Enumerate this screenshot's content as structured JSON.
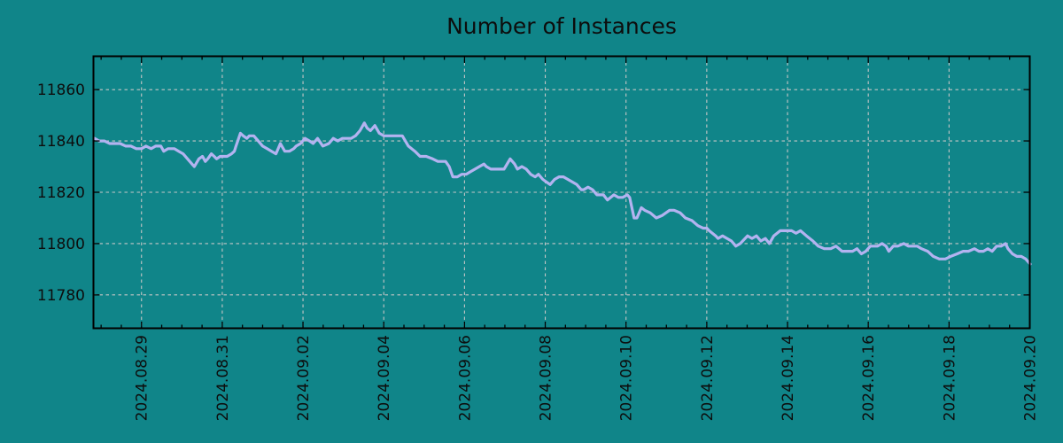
{
  "figure": {
    "background_color": "#108589",
    "text_color": "#0d0d0d",
    "axis_color": "#000000"
  },
  "chart_data": {
    "type": "line",
    "title": "Number of Instances",
    "xlabel": "",
    "ylabel": "",
    "grid": true,
    "legend": false,
    "line_color": "#b3b3f0",
    "grid_color": "#c6c6c6",
    "x_axis": {
      "unit": "date",
      "tick_labels": [
        "2024.08.29",
        "2024.08.31",
        "2024.09.02",
        "2024.09.04",
        "2024.09.06",
        "2024.09.08",
        "2024.09.10",
        "2024.09.12",
        "2024.09.14",
        "2024.09.16",
        "2024.09.18",
        "2024.09.20"
      ],
      "tick_positions_days": [
        1,
        3,
        5,
        7,
        9,
        11,
        13,
        15,
        17,
        19,
        21,
        23
      ],
      "minor_tick_step_days": 0.5,
      "xlim_days": [
        -0.19,
        23.0
      ],
      "days_epoch": "2024.08.28"
    },
    "y_axis": {
      "ticks": [
        11780,
        11800,
        11820,
        11840,
        11860
      ],
      "ylim": [
        11767,
        11873
      ]
    },
    "series": [
      {
        "name": "Number of Instances",
        "points_days_value": [
          [
            -0.16,
            11841
          ],
          [
            -0.05,
            11840
          ],
          [
            0.08,
            11840
          ],
          [
            0.21,
            11839
          ],
          [
            0.34,
            11839
          ],
          [
            0.47,
            11839
          ],
          [
            0.61,
            11838
          ],
          [
            0.74,
            11838
          ],
          [
            0.87,
            11837
          ],
          [
            1.0,
            11837
          ],
          [
            1.11,
            11838
          ],
          [
            1.24,
            11837
          ],
          [
            1.35,
            11838
          ],
          [
            1.48,
            11838
          ],
          [
            1.55,
            11836
          ],
          [
            1.66,
            11837
          ],
          [
            1.81,
            11837
          ],
          [
            1.92,
            11836
          ],
          [
            2.03,
            11835
          ],
          [
            2.14,
            11833
          ],
          [
            2.25,
            11831
          ],
          [
            2.31,
            11830
          ],
          [
            2.42,
            11833
          ],
          [
            2.51,
            11834
          ],
          [
            2.58,
            11832
          ],
          [
            2.64,
            11833
          ],
          [
            2.73,
            11835
          ],
          [
            2.8,
            11834
          ],
          [
            2.86,
            11833
          ],
          [
            2.95,
            11834
          ],
          [
            3.01,
            11834
          ],
          [
            3.12,
            11834
          ],
          [
            3.23,
            11835
          ],
          [
            3.3,
            11836
          ],
          [
            3.34,
            11838
          ],
          [
            3.45,
            11843
          ],
          [
            3.52,
            11842
          ],
          [
            3.61,
            11841
          ],
          [
            3.67,
            11842
          ],
          [
            3.78,
            11842
          ],
          [
            3.89,
            11840
          ],
          [
            4.0,
            11838
          ],
          [
            4.11,
            11837
          ],
          [
            4.22,
            11836
          ],
          [
            4.33,
            11835
          ],
          [
            4.44,
            11839
          ],
          [
            4.55,
            11836
          ],
          [
            4.66,
            11836
          ],
          [
            4.77,
            11837
          ],
          [
            4.83,
            11838
          ],
          [
            4.94,
            11839
          ],
          [
            5.05,
            11841
          ],
          [
            5.16,
            11840
          ],
          [
            5.25,
            11839
          ],
          [
            5.36,
            11841
          ],
          [
            5.49,
            11838
          ],
          [
            5.64,
            11839
          ],
          [
            5.75,
            11841
          ],
          [
            5.86,
            11840
          ],
          [
            5.97,
            11841
          ],
          [
            6.08,
            11841
          ],
          [
            6.19,
            11841
          ],
          [
            6.3,
            11842
          ],
          [
            6.41,
            11844
          ],
          [
            6.52,
            11847
          ],
          [
            6.59,
            11845
          ],
          [
            6.67,
            11844
          ],
          [
            6.78,
            11846
          ],
          [
            6.89,
            11843
          ],
          [
            7.0,
            11842
          ],
          [
            7.18,
            11842
          ],
          [
            7.33,
            11842
          ],
          [
            7.46,
            11842
          ],
          [
            7.61,
            11838
          ],
          [
            7.77,
            11836
          ],
          [
            7.9,
            11834
          ],
          [
            8.05,
            11834
          ],
          [
            8.21,
            11833
          ],
          [
            8.34,
            11832
          ],
          [
            8.45,
            11832
          ],
          [
            8.53,
            11832
          ],
          [
            8.62,
            11830
          ],
          [
            8.71,
            11826
          ],
          [
            8.82,
            11826
          ],
          [
            8.93,
            11827
          ],
          [
            9.04,
            11827
          ],
          [
            9.15,
            11828
          ],
          [
            9.26,
            11829
          ],
          [
            9.37,
            11830
          ],
          [
            9.48,
            11831
          ],
          [
            9.54,
            11830
          ],
          [
            9.65,
            11829
          ],
          [
            9.76,
            11829
          ],
          [
            9.87,
            11829
          ],
          [
            9.98,
            11829
          ],
          [
            10.13,
            11833
          ],
          [
            10.24,
            11831
          ],
          [
            10.31,
            11829
          ],
          [
            10.42,
            11830
          ],
          [
            10.53,
            11829
          ],
          [
            10.64,
            11827
          ],
          [
            10.75,
            11826
          ],
          [
            10.83,
            11827
          ],
          [
            10.94,
            11825
          ],
          [
            11.03,
            11824
          ],
          [
            11.12,
            11823
          ],
          [
            11.23,
            11825
          ],
          [
            11.34,
            11826
          ],
          [
            11.45,
            11826
          ],
          [
            11.56,
            11825
          ],
          [
            11.67,
            11824
          ],
          [
            11.78,
            11823
          ],
          [
            11.89,
            11821
          ],
          [
            11.95,
            11821
          ],
          [
            12.06,
            11822
          ],
          [
            12.17,
            11821
          ],
          [
            12.28,
            11819
          ],
          [
            12.44,
            11819
          ],
          [
            12.54,
            11817
          ],
          [
            12.7,
            11819
          ],
          [
            12.81,
            11818
          ],
          [
            12.92,
            11818
          ],
          [
            13.03,
            11819
          ],
          [
            13.09,
            11818
          ],
          [
            13.2,
            11810
          ],
          [
            13.27,
            11810
          ],
          [
            13.38,
            11814
          ],
          [
            13.46,
            11813
          ],
          [
            13.6,
            11812
          ],
          [
            13.75,
            11810
          ],
          [
            13.9,
            11811
          ],
          [
            14.08,
            11813
          ],
          [
            14.19,
            11813
          ],
          [
            14.34,
            11812
          ],
          [
            14.47,
            11810
          ],
          [
            14.63,
            11809
          ],
          [
            14.78,
            11807
          ],
          [
            14.91,
            11806
          ],
          [
            15.0,
            11806
          ],
          [
            15.06,
            11805
          ],
          [
            15.22,
            11803
          ],
          [
            15.28,
            11802
          ],
          [
            15.39,
            11803
          ],
          [
            15.5,
            11802
          ],
          [
            15.61,
            11801
          ],
          [
            15.72,
            11799
          ],
          [
            15.83,
            11800
          ],
          [
            16.01,
            11803
          ],
          [
            16.12,
            11802
          ],
          [
            16.23,
            11803
          ],
          [
            16.34,
            11801
          ],
          [
            16.45,
            11802
          ],
          [
            16.55,
            11800
          ],
          [
            16.66,
            11803
          ],
          [
            16.82,
            11805
          ],
          [
            17.0,
            11805
          ],
          [
            17.1,
            11805
          ],
          [
            17.21,
            11804
          ],
          [
            17.32,
            11805
          ],
          [
            17.47,
            11803
          ],
          [
            17.63,
            11801
          ],
          [
            17.76,
            11799
          ],
          [
            17.91,
            11798
          ],
          [
            18.07,
            11798
          ],
          [
            18.2,
            11799
          ],
          [
            18.35,
            11797
          ],
          [
            18.5,
            11797
          ],
          [
            18.61,
            11797
          ],
          [
            18.72,
            11798
          ],
          [
            18.83,
            11796
          ],
          [
            18.94,
            11797
          ],
          [
            19.05,
            11799
          ],
          [
            19.23,
            11799
          ],
          [
            19.34,
            11800
          ],
          [
            19.44,
            11799
          ],
          [
            19.51,
            11797
          ],
          [
            19.62,
            11799
          ],
          [
            19.73,
            11799
          ],
          [
            19.88,
            11800
          ],
          [
            19.99,
            11799
          ],
          [
            20.1,
            11799
          ],
          [
            20.21,
            11799
          ],
          [
            20.32,
            11798
          ],
          [
            20.47,
            11797
          ],
          [
            20.61,
            11795
          ],
          [
            20.76,
            11794
          ],
          [
            20.91,
            11794
          ],
          [
            21.04,
            11795
          ],
          [
            21.2,
            11796
          ],
          [
            21.35,
            11797
          ],
          [
            21.48,
            11797
          ],
          [
            21.63,
            11798
          ],
          [
            21.74,
            11797
          ],
          [
            21.85,
            11797
          ],
          [
            21.96,
            11798
          ],
          [
            22.07,
            11797
          ],
          [
            22.18,
            11799
          ],
          [
            22.29,
            11799
          ],
          [
            22.4,
            11800
          ],
          [
            22.46,
            11798
          ],
          [
            22.57,
            11796
          ],
          [
            22.68,
            11795
          ],
          [
            22.79,
            11795
          ],
          [
            22.9,
            11794
          ],
          [
            23.01,
            11792
          ]
        ]
      }
    ]
  }
}
